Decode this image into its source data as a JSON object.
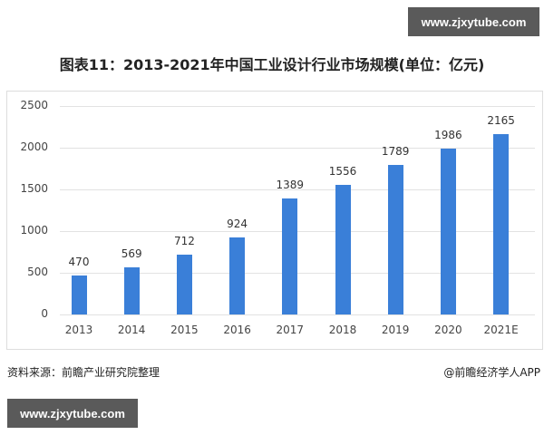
{
  "watermark": {
    "text": "www.zjxytube.com",
    "bg": "#5a5a5a"
  },
  "header": {
    "title": "图表11：2013-2021年中国工业设计行业市场规模(单位：亿元)"
  },
  "footer": {
    "source": "资料来源：前瞻产业研究院整理",
    "credit": "@前瞻经济学人APP"
  },
  "chart_data": {
    "type": "bar",
    "title": "图表11：2013-2021年中国工业设计行业市场规模(单位：亿元)",
    "xlabel": "",
    "ylabel": "亿元",
    "categories": [
      "2013",
      "2014",
      "2015",
      "2016",
      "2017",
      "2018",
      "2019",
      "2020",
      "2021E"
    ],
    "values": [
      470,
      569,
      712,
      924,
      1389,
      1556,
      1789,
      1986,
      2165
    ],
    "ylim": [
      0,
      2500
    ],
    "yticks": [
      0,
      500,
      1000,
      1500,
      2000,
      2500
    ],
    "grid": true,
    "legend": "none",
    "bar_color": "#3a7fd8",
    "data_labels": true
  }
}
